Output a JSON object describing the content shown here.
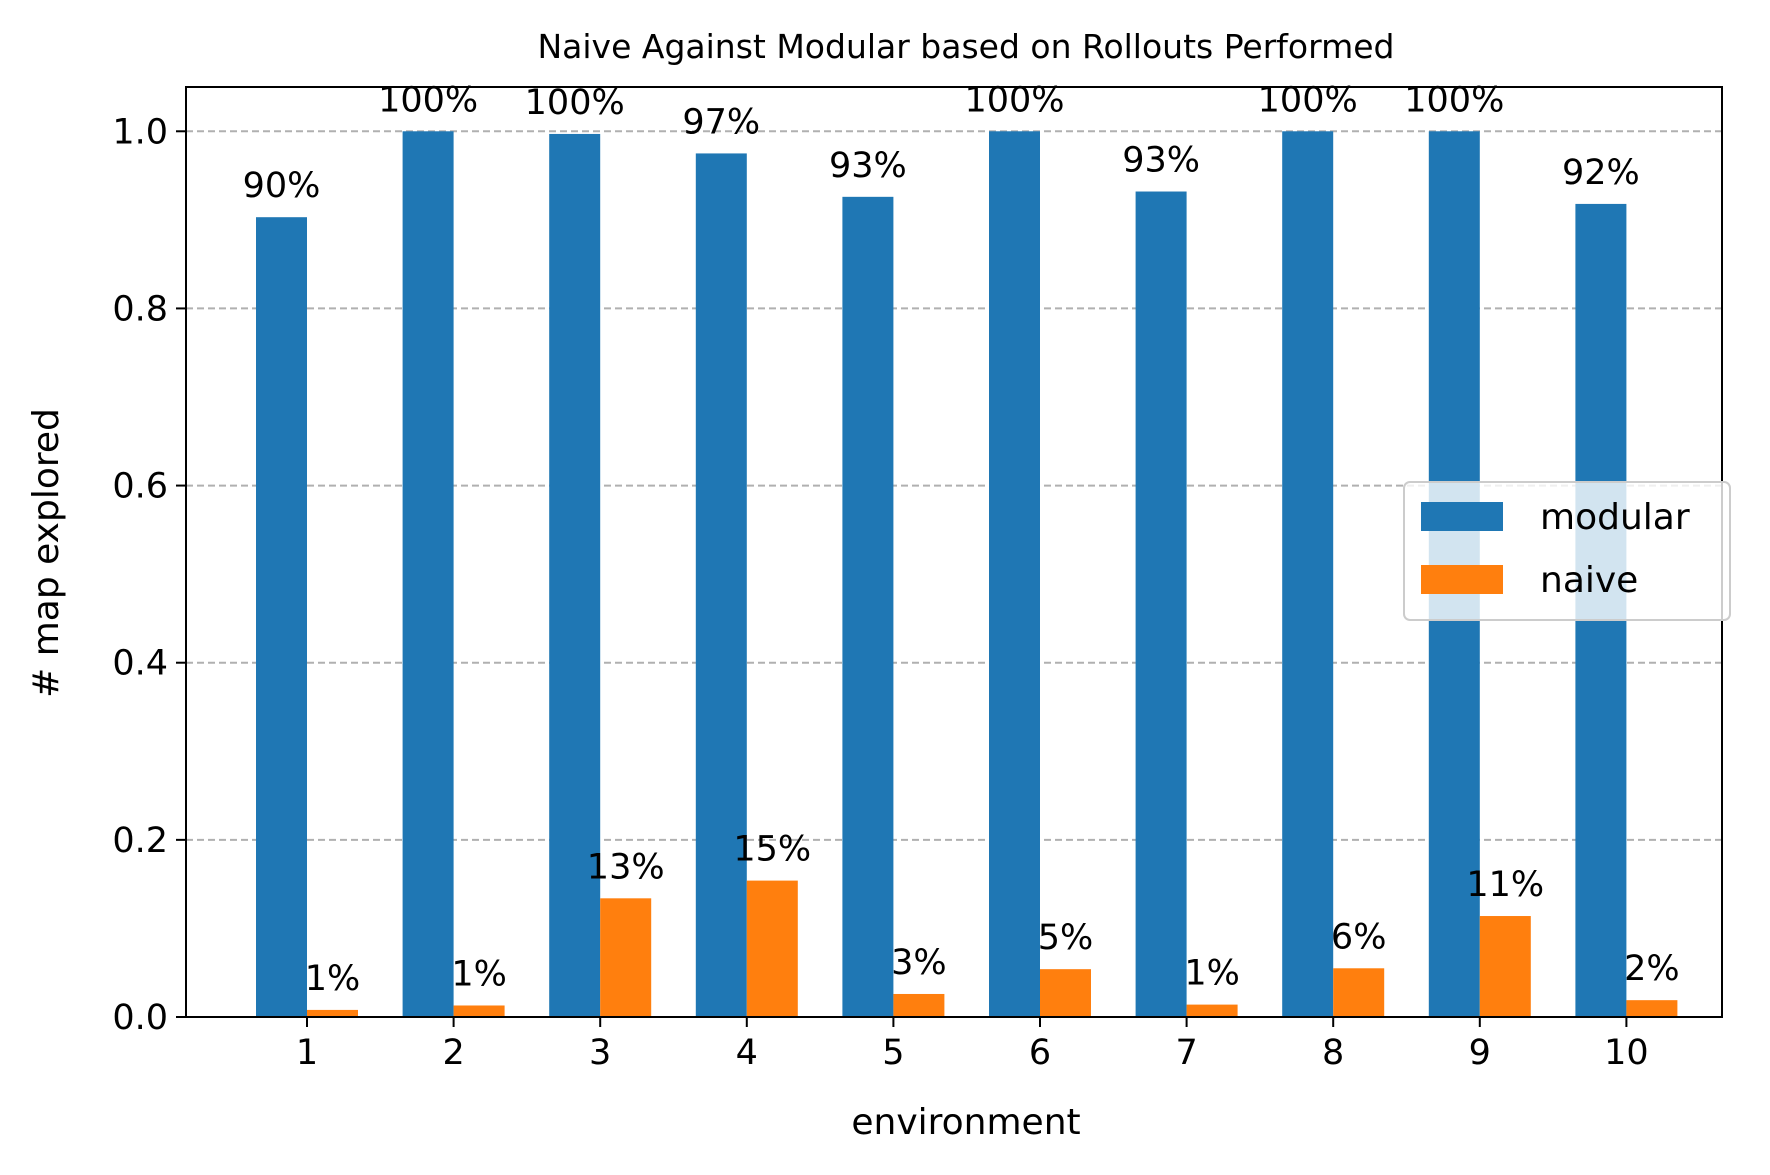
{
  "chart_data": {
    "type": "bar",
    "title": "Naive Against Modular based on Rollouts Performed",
    "xlabel": "environment",
    "ylabel": "# map explored",
    "categories": [
      "1",
      "2",
      "3",
      "4",
      "5",
      "6",
      "7",
      "8",
      "9",
      "10"
    ],
    "ylim": [
      0,
      1.05
    ],
    "yticks": [
      "0.0",
      "0.2",
      "0.4",
      "0.6",
      "0.8",
      "1.0"
    ],
    "grid": "y-dashed",
    "legend_position": "center-right",
    "series": [
      {
        "name": "modular",
        "color": "#1f77b4",
        "values": [
          0.903,
          1.0,
          0.997,
          0.975,
          0.926,
          1.0,
          0.932,
          1.0,
          1.0,
          0.918
        ],
        "labels": [
          "90%",
          "100%",
          "100%",
          "97%",
          "93%",
          "100%",
          "93%",
          "100%",
          "100%",
          "92%"
        ]
      },
      {
        "name": "naive",
        "color": "#ff7f0e",
        "values": [
          0.008,
          0.013,
          0.134,
          0.154,
          0.026,
          0.054,
          0.014,
          0.055,
          0.114,
          0.019
        ],
        "labels": [
          "1%",
          "1%",
          "13%",
          "15%",
          "3%",
          "5%",
          "1%",
          "6%",
          "11%",
          "2%"
        ]
      }
    ]
  }
}
